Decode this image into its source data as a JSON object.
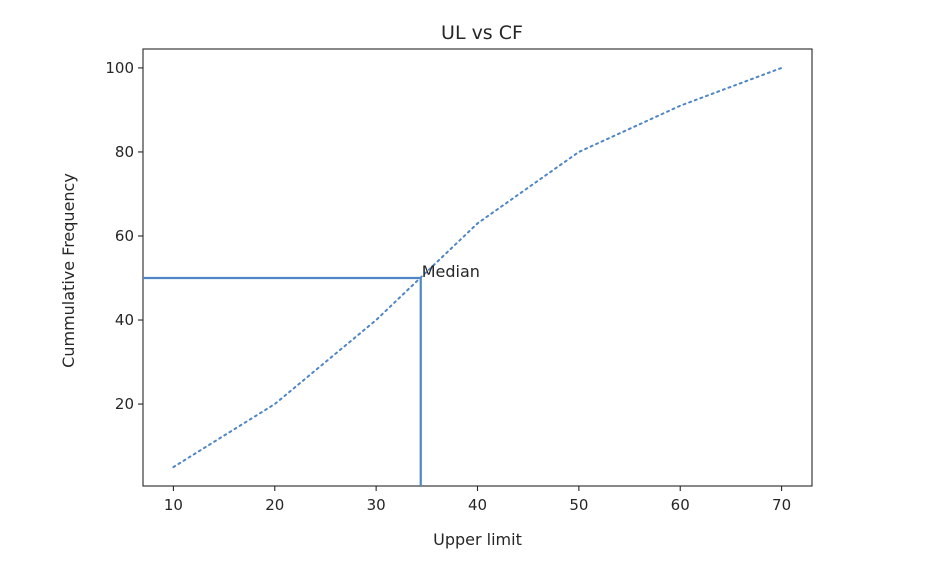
{
  "chart_data": {
    "type": "line",
    "title": "UL vs CF",
    "xlabel": "Upper limit",
    "ylabel": "Cummulative Frequency",
    "xlim": [
      7,
      73
    ],
    "ylim": [
      0.5,
      104.5
    ],
    "xticks": [
      10,
      20,
      30,
      40,
      50,
      60,
      70
    ],
    "yticks": [
      20,
      40,
      60,
      80,
      100
    ],
    "grid": false,
    "legend": "none",
    "series": [
      {
        "x": [
          10,
          20,
          30,
          40,
          50,
          60,
          70
        ],
        "y": [
          5,
          20,
          40,
          63,
          80,
          91,
          100
        ],
        "style": "dotted",
        "color": "#4f86c6"
      }
    ],
    "median": {
      "x": 34.4,
      "y": 50,
      "label": "Median",
      "color": "#4f86c6"
    }
  }
}
